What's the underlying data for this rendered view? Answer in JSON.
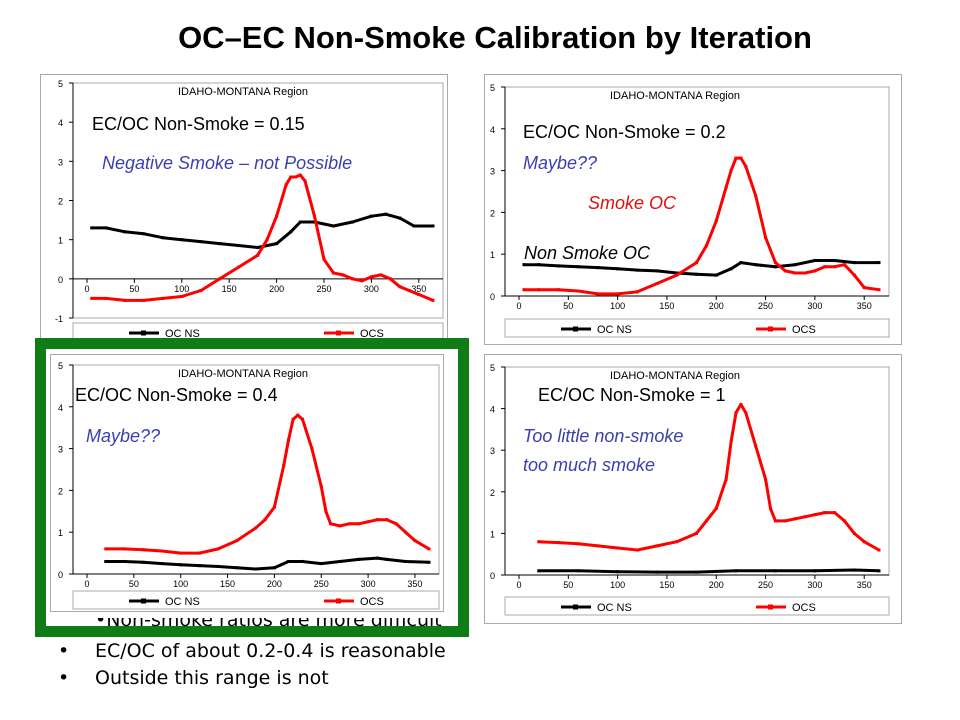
{
  "page": {
    "title": "OC–EC Non-Smoke Calibration by Iteration",
    "bullets": [
      "Non-smoke ratios are more difficult",
      "EC/OC of about 0.2-0.4 is reasonable",
      "Outside this range is not"
    ]
  },
  "colors": {
    "oc_ns": "#000000",
    "ocs": "#ff0000",
    "highlight": "#0e7d16",
    "annotation_blue": "#3b40b0"
  },
  "chart_data": [
    {
      "type": "line",
      "title": "IDAHO-MONTANA Region",
      "ylim": [
        -1,
        5
      ],
      "yticks": [
        -1,
        0,
        1,
        2,
        3,
        4,
        5
      ],
      "xlim": [
        0,
        365
      ],
      "xticks": [
        0,
        50,
        100,
        150,
        200,
        250,
        300,
        350
      ],
      "legend": [
        "OC_NS",
        "OCS"
      ],
      "legend_position": "bottom",
      "grid": false,
      "annotations": {
        "ratio": "EC/OC Non-Smoke = 0.15",
        "note": "Negative Smoke – not Possible"
      },
      "series": [
        {
          "name": "OC_NS",
          "color": "#000000",
          "x": [
            5,
            20,
            40,
            60,
            80,
            100,
            120,
            140,
            160,
            180,
            200,
            215,
            225,
            240,
            260,
            280,
            300,
            315,
            330,
            345,
            365
          ],
          "y": [
            1.3,
            1.3,
            1.2,
            1.15,
            1.05,
            1.0,
            0.95,
            0.9,
            0.85,
            0.8,
            0.9,
            1.2,
            1.45,
            1.45,
            1.35,
            1.45,
            1.6,
            1.65,
            1.55,
            1.35,
            1.35
          ]
        },
        {
          "name": "OCS",
          "color": "#ff0000",
          "x": [
            5,
            20,
            40,
            60,
            80,
            100,
            120,
            140,
            160,
            180,
            190,
            200,
            210,
            215,
            220,
            225,
            230,
            240,
            250,
            260,
            270,
            280,
            290,
            300,
            310,
            320,
            330,
            340,
            350,
            365
          ],
          "y": [
            -0.5,
            -0.5,
            -0.55,
            -0.55,
            -0.5,
            -0.45,
            -0.3,
            0.0,
            0.3,
            0.6,
            1.0,
            1.6,
            2.4,
            2.6,
            2.6,
            2.65,
            2.5,
            1.6,
            0.5,
            0.15,
            0.1,
            0.0,
            -0.05,
            0.05,
            0.1,
            0.0,
            -0.2,
            -0.3,
            -0.4,
            -0.55
          ]
        }
      ]
    },
    {
      "type": "line",
      "title": "IDAHO-MONTANA Region",
      "ylim": [
        0,
        5
      ],
      "yticks": [
        0,
        1,
        2,
        3,
        4,
        5
      ],
      "xlim": [
        0,
        365
      ],
      "xticks": [
        0,
        50,
        100,
        150,
        200,
        250,
        300,
        350
      ],
      "legend": [
        "OC_NS",
        "OCS"
      ],
      "legend_position": "bottom",
      "grid": false,
      "annotations": {
        "ratio": "EC/OC Non-Smoke = 0.2",
        "note": "Maybe??",
        "series_label_smoke": "Smoke OC",
        "series_label_nonsmoke": "Non Smoke OC"
      },
      "series": [
        {
          "name": "OC_NS",
          "color": "#000000",
          "x": [
            5,
            20,
            40,
            60,
            80,
            100,
            120,
            140,
            160,
            180,
            200,
            215,
            225,
            240,
            260,
            280,
            300,
            320,
            340,
            365
          ],
          "y": [
            0.75,
            0.75,
            0.72,
            0.7,
            0.68,
            0.65,
            0.62,
            0.6,
            0.55,
            0.52,
            0.5,
            0.65,
            0.8,
            0.75,
            0.7,
            0.75,
            0.85,
            0.85,
            0.8,
            0.8
          ]
        },
        {
          "name": "OCS",
          "color": "#ff0000",
          "x": [
            5,
            20,
            40,
            60,
            80,
            100,
            120,
            140,
            160,
            180,
            190,
            200,
            210,
            215,
            220,
            225,
            230,
            240,
            250,
            260,
            270,
            280,
            290,
            300,
            310,
            320,
            330,
            340,
            350,
            365
          ],
          "y": [
            0.15,
            0.15,
            0.15,
            0.12,
            0.05,
            0.05,
            0.1,
            0.3,
            0.5,
            0.8,
            1.2,
            1.8,
            2.6,
            3.0,
            3.3,
            3.3,
            3.1,
            2.4,
            1.4,
            0.8,
            0.6,
            0.55,
            0.55,
            0.6,
            0.7,
            0.7,
            0.75,
            0.5,
            0.2,
            0.15
          ]
        }
      ]
    },
    {
      "type": "line",
      "title": "IDAHO-MONTANA Region",
      "ylim": [
        0,
        5
      ],
      "yticks": [
        0,
        1,
        2,
        3,
        4,
        5
      ],
      "xlim": [
        0,
        365
      ],
      "xticks": [
        0,
        50,
        100,
        150,
        200,
        250,
        300,
        350
      ],
      "legend": [
        "OC_NS",
        "OCS"
      ],
      "legend_position": "bottom",
      "grid": false,
      "annotations": {
        "ratio": "EC/OC Non-Smoke = 0.4",
        "note": "Maybe??"
      },
      "series": [
        {
          "name": "OC_NS",
          "color": "#000000",
          "x": [
            20,
            40,
            60,
            80,
            100,
            120,
            140,
            160,
            180,
            200,
            215,
            230,
            250,
            270,
            290,
            310,
            320,
            340,
            365
          ],
          "y": [
            0.3,
            0.3,
            0.28,
            0.25,
            0.22,
            0.2,
            0.18,
            0.15,
            0.12,
            0.15,
            0.3,
            0.3,
            0.25,
            0.3,
            0.35,
            0.38,
            0.35,
            0.3,
            0.28
          ]
        },
        {
          "name": "OCS",
          "color": "#ff0000",
          "x": [
            20,
            40,
            60,
            80,
            100,
            120,
            140,
            160,
            180,
            190,
            200,
            210,
            215,
            220,
            225,
            230,
            240,
            250,
            255,
            260,
            270,
            280,
            290,
            300,
            310,
            320,
            330,
            340,
            350,
            365
          ],
          "y": [
            0.6,
            0.6,
            0.58,
            0.55,
            0.5,
            0.5,
            0.6,
            0.8,
            1.1,
            1.3,
            1.6,
            2.6,
            3.2,
            3.7,
            3.8,
            3.7,
            3.0,
            2.1,
            1.5,
            1.2,
            1.15,
            1.2,
            1.2,
            1.25,
            1.3,
            1.3,
            1.2,
            1.0,
            0.8,
            0.6
          ]
        }
      ]
    },
    {
      "type": "line",
      "title": "IDAHO-MONTANA Region",
      "ylim": [
        0,
        5
      ],
      "yticks": [
        0,
        1,
        2,
        3,
        4,
        5
      ],
      "xlim": [
        0,
        365
      ],
      "xticks": [
        0,
        50,
        100,
        150,
        200,
        250,
        300,
        350
      ],
      "legend": [
        "OC_NS",
        "OCS"
      ],
      "legend_position": "bottom",
      "grid": false,
      "annotations": {
        "ratio": "EC/OC Non-Smoke = 1",
        "note_line1": "Too little non-smoke",
        "note_line2": "too much smoke"
      },
      "series": [
        {
          "name": "OC_NS",
          "color": "#000000",
          "x": [
            20,
            60,
            100,
            140,
            180,
            220,
            260,
            300,
            340,
            365
          ],
          "y": [
            0.1,
            0.1,
            0.08,
            0.07,
            0.07,
            0.1,
            0.1,
            0.1,
            0.12,
            0.1
          ]
        },
        {
          "name": "OCS",
          "color": "#ff0000",
          "x": [
            20,
            40,
            60,
            80,
            100,
            120,
            140,
            160,
            180,
            190,
            200,
            210,
            215,
            220,
            225,
            230,
            240,
            250,
            255,
            260,
            270,
            280,
            290,
            300,
            310,
            320,
            330,
            340,
            350,
            365
          ],
          "y": [
            0.8,
            0.78,
            0.75,
            0.7,
            0.65,
            0.6,
            0.7,
            0.8,
            1.0,
            1.3,
            1.6,
            2.3,
            3.2,
            3.9,
            4.1,
            3.9,
            3.1,
            2.3,
            1.6,
            1.3,
            1.3,
            1.35,
            1.4,
            1.45,
            1.5,
            1.5,
            1.3,
            1.0,
            0.8,
            0.6
          ]
        }
      ]
    }
  ]
}
